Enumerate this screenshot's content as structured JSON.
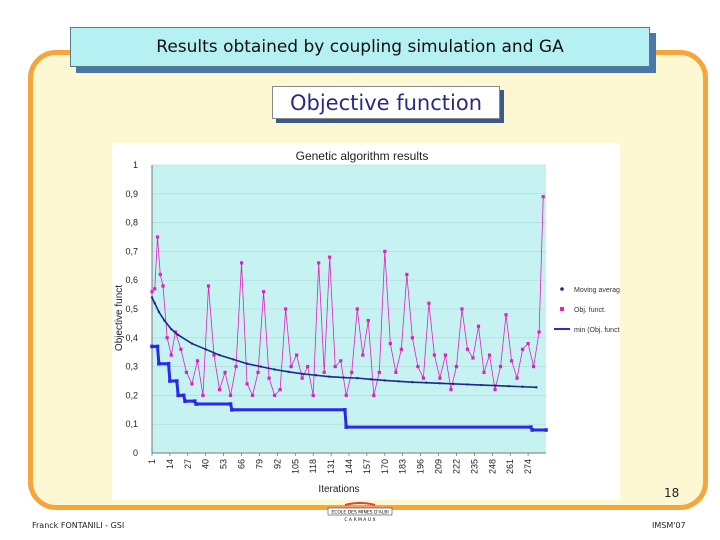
{
  "slide": {
    "title": "Results obtained by coupling simulation and GA",
    "subtitle": "Objective function",
    "page_number": "18",
    "author": "Franck FONTANILI - GSI",
    "conference": "IMSM'07",
    "logo_text": "ECOLE DES MINES D'ALBI",
    "logo_subtext": "C A R M A U X"
  },
  "colors": {
    "frame_border": "#f5a53a",
    "frame_fill": "#fdf8d2",
    "title_fill": "#b5f0f2",
    "plot_bg": "#c6f3f2",
    "moving_average": "#1a2a8a",
    "objective_function": "#e020c0",
    "min_objective": "#2a2ae6"
  },
  "chart_data": {
    "type": "line",
    "title": "Genetic algorithm results",
    "xlabel": "Iterations",
    "ylabel": "Objective funct",
    "ylim": [
      0,
      1
    ],
    "xlim": [
      1,
      287
    ],
    "y_ticks": [
      "0",
      "0,1",
      "0,2",
      "0,3",
      "0,4",
      "0,5",
      "0,6",
      "0,7",
      "0,8",
      "0,9",
      "1"
    ],
    "x_ticks": [
      "1",
      "14",
      "27",
      "40",
      "53",
      "66",
      "79",
      "92",
      "105",
      "118",
      "131",
      "144",
      "157",
      "170",
      "183",
      "196",
      "209",
      "222",
      "235",
      "248",
      "261",
      "274"
    ],
    "legend_position": "right",
    "series": [
      {
        "name": "Moving average",
        "style": "line-with-markers",
        "x": [
          1,
          3,
          6,
          10,
          15,
          20,
          30,
          40,
          50,
          60,
          70,
          80,
          90,
          100,
          110,
          120,
          130,
          140,
          150,
          160,
          170,
          180,
          190,
          200,
          210,
          220,
          230,
          240,
          250,
          260,
          270,
          280
        ],
        "values": [
          0.54,
          0.52,
          0.49,
          0.46,
          0.43,
          0.41,
          0.38,
          0.36,
          0.34,
          0.325,
          0.31,
          0.3,
          0.29,
          0.282,
          0.275,
          0.27,
          0.265,
          0.262,
          0.26,
          0.256,
          0.252,
          0.249,
          0.246,
          0.244,
          0.242,
          0.24,
          0.238,
          0.236,
          0.234,
          0.232,
          0.23,
          0.228
        ]
      },
      {
        "name": "Obj. funct.",
        "style": "markers-with-thin-line",
        "x": [
          1,
          3,
          5,
          7,
          9,
          12,
          15,
          18,
          22,
          26,
          30,
          34,
          38,
          42,
          46,
          50,
          54,
          58,
          62,
          66,
          70,
          74,
          78,
          82,
          86,
          90,
          94,
          98,
          102,
          106,
          110,
          114,
          118,
          122,
          126,
          130,
          134,
          138,
          142,
          146,
          150,
          154,
          158,
          162,
          166,
          170,
          174,
          178,
          182,
          186,
          190,
          194,
          198,
          202,
          206,
          210,
          214,
          218,
          222,
          226,
          230,
          234,
          238,
          242,
          246,
          250,
          254,
          258,
          262,
          266,
          270,
          274,
          278,
          282,
          285
        ],
        "values": [
          0.56,
          0.57,
          0.75,
          0.62,
          0.58,
          0.4,
          0.34,
          0.42,
          0.36,
          0.28,
          0.24,
          0.32,
          0.2,
          0.58,
          0.34,
          0.22,
          0.28,
          0.2,
          0.3,
          0.66,
          0.24,
          0.2,
          0.28,
          0.56,
          0.26,
          0.2,
          0.22,
          0.5,
          0.3,
          0.34,
          0.26,
          0.3,
          0.2,
          0.66,
          0.28,
          0.68,
          0.3,
          0.32,
          0.2,
          0.28,
          0.5,
          0.34,
          0.46,
          0.2,
          0.28,
          0.7,
          0.38,
          0.28,
          0.36,
          0.62,
          0.4,
          0.3,
          0.26,
          0.52,
          0.34,
          0.26,
          0.34,
          0.22,
          0.3,
          0.5,
          0.36,
          0.33,
          0.44,
          0.28,
          0.34,
          0.22,
          0.3,
          0.48,
          0.32,
          0.26,
          0.36,
          0.38,
          0.3,
          0.42,
          0.89
        ]
      },
      {
        "name": "min (Obj. funct.)",
        "style": "step-with-markers",
        "x": [
          1,
          5,
          6,
          13,
          14,
          19,
          20,
          24,
          25,
          32,
          33,
          58,
          59,
          141,
          142,
          276,
          277,
          287
        ],
        "values": [
          0.37,
          0.37,
          0.31,
          0.31,
          0.25,
          0.25,
          0.2,
          0.2,
          0.18,
          0.18,
          0.17,
          0.17,
          0.15,
          0.15,
          0.09,
          0.09,
          0.08,
          0.08
        ]
      }
    ]
  }
}
